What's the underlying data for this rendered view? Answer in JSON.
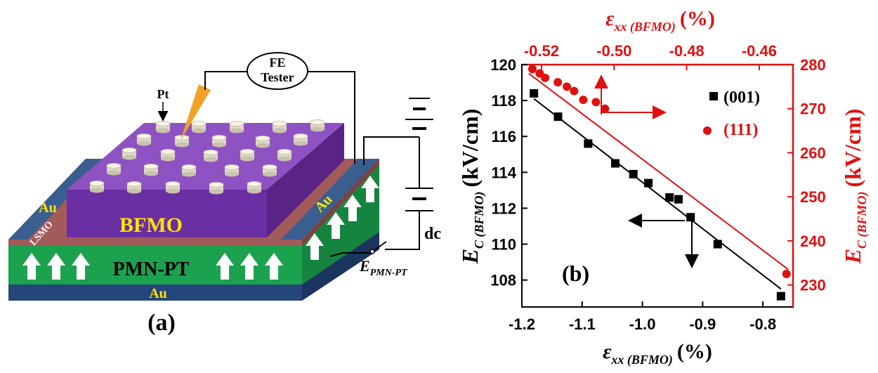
{
  "device": {
    "panel_label": "(a)",
    "fe_tester_line1": "FE",
    "fe_tester_line2": "Tester",
    "pt_label": "Pt",
    "bfmo_label": "BFMO",
    "lsmo_label": "LSMO",
    "au_left": "Au",
    "au_right": "Au",
    "au_bottom": "Au",
    "pmnpt_label": "PMN-PT",
    "dc_label": "dc",
    "e_label_main": "E",
    "e_label_sub": "PMN-PT",
    "colors": {
      "bfmo_top": "#8e52c2",
      "bfmo_front": "#6a2fa3",
      "bfmo_side": "#5a2487",
      "pmnpt": "#1ca24f",
      "au": "#3a5f8f",
      "au_bottom": "#25467a",
      "lsmo": "#a35a5a",
      "tip": "#f2a126",
      "au_text": "#ffe400"
    }
  },
  "chart_data": {
    "type": "scatter",
    "panel_label": "(b)",
    "xlabel_main": "ε",
    "xlabel_sub": "xx (BFMO)",
    "xlabel_unit": "(%)",
    "top_xlabel_main": "ε",
    "top_xlabel_sub": "xx (BFMO)",
    "top_xlabel_unit": "(%)",
    "ylabel_main": "E",
    "ylabel_sub": "C (BFMO)",
    "ylabel_unit": "(kV/cm)",
    "right_ylabel_main": "E",
    "right_ylabel_sub": "C (BFMO)",
    "right_ylabel_unit": "(kV/cm)",
    "xlim": [
      -1.2,
      -0.75
    ],
    "ylim": [
      106.5,
      120
    ],
    "top_xlim": [
      -0.5254,
      -0.4507
    ],
    "right_ylim": [
      225,
      280
    ],
    "x_ticks": [
      "-1.2",
      "-1.1",
      "-1.0",
      "-0.9",
      "-0.8"
    ],
    "x_tick_values": [
      -1.2,
      -1.1,
      -1.0,
      -0.9,
      -0.8
    ],
    "y_ticks": [
      "108",
      "110",
      "112",
      "114",
      "116",
      "118",
      "120"
    ],
    "y_tick_values": [
      108,
      110,
      112,
      114,
      116,
      118,
      120
    ],
    "top_x_ticks": [
      "-0.52",
      "-0.50",
      "-0.48",
      "-0.46"
    ],
    "top_x_tick_values": [
      -0.52,
      -0.5,
      -0.48,
      -0.46
    ],
    "right_y_ticks": [
      "230",
      "240",
      "250",
      "260",
      "270",
      "280"
    ],
    "right_y_tick_values": [
      230,
      240,
      250,
      260,
      270,
      280
    ],
    "series": [
      {
        "name": "(001)",
        "axis": "bottom-left",
        "color": "#000000",
        "marker": "square",
        "x": [
          -1.18,
          -1.14,
          -1.09,
          -1.045,
          -1.015,
          -0.99,
          -0.955,
          -0.94,
          -0.92,
          -0.875,
          -0.77
        ],
        "y": [
          118.4,
          117.1,
          115.6,
          114.5,
          113.9,
          113.4,
          112.6,
          112.5,
          111.5,
          110.0,
          107.1
        ],
        "fit": [
          [
            -1.18,
            118.1
          ],
          [
            -0.77,
            107.5
          ]
        ]
      },
      {
        "name": "(111)",
        "axis": "top-right",
        "color": "#e01010",
        "marker": "circle",
        "x": [
          -0.5225,
          -0.5205,
          -0.519,
          -0.5155,
          -0.513,
          -0.511,
          -0.5085,
          -0.505,
          -0.5025
        ],
        "y": [
          279.0,
          278.0,
          277.0,
          276.0,
          275.0,
          274.0,
          272.0,
          271.5,
          270.0
        ],
        "extra_point": [
          -0.4525,
          232.5
        ],
        "fit": [
          [
            -0.5235,
            278.0
          ],
          [
            -0.452,
            233.5
          ]
        ]
      }
    ],
    "legend_position": "top-right"
  }
}
